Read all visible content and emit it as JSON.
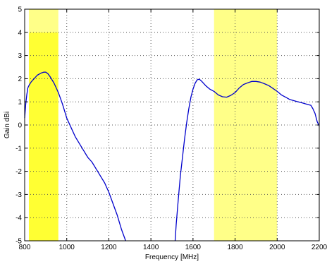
{
  "chart_data": {
    "type": "line",
    "title": "",
    "xlabel": "Frequency [MHz]",
    "ylabel": "Gain dBi",
    "xlim": [
      800,
      2200
    ],
    "ylim": [
      -5,
      5
    ],
    "xticks": [
      800,
      1000,
      1200,
      1400,
      1600,
      1800,
      2000,
      2200
    ],
    "yticks": [
      -5,
      -4,
      -3,
      -2,
      -1,
      0,
      1,
      2,
      3,
      4,
      5
    ],
    "grid": true,
    "bands": [
      {
        "x": [
          820,
          960
        ],
        "y": [
          -5,
          4
        ],
        "color": "#ffff33"
      },
      {
        "x": [
          820,
          960
        ],
        "y": [
          4,
          5
        ],
        "color": "#ffff88"
      },
      {
        "x": [
          1700,
          2000
        ],
        "y": [
          -5,
          5
        ],
        "color": "#ffff88"
      }
    ],
    "series": [
      {
        "color": "#0000cc",
        "segments": [
          {
            "x": [
              800,
              805,
              810,
              815,
              820,
              830,
              840,
              850,
              860,
              870,
              880,
              890,
              900,
              910,
              920,
              930,
              940,
              950,
              960,
              970,
              980,
              990,
              1000,
              1020,
              1040,
              1060,
              1080,
              1100,
              1120,
              1140,
              1160,
              1180,
              1200,
              1220,
              1240,
              1260,
              1280
            ],
            "y": [
              0.3,
              0.9,
              1.3,
              1.6,
              1.7,
              1.85,
              1.95,
              2.05,
              2.15,
              2.2,
              2.25,
              2.28,
              2.28,
              2.22,
              2.1,
              1.95,
              1.8,
              1.6,
              1.4,
              1.15,
              0.9,
              0.6,
              0.3,
              -0.1,
              -0.5,
              -0.8,
              -1.1,
              -1.4,
              -1.6,
              -1.9,
              -2.2,
              -2.5,
              -2.9,
              -3.4,
              -3.9,
              -4.5,
              -5.0
            ]
          },
          {
            "x": [
              1515,
              1520,
              1530,
              1540,
              1550,
              1560,
              1570,
              1580,
              1590,
              1600,
              1610,
              1620,
              1630,
              1640,
              1660,
              1680,
              1700,
              1720,
              1740,
              1760,
              1780,
              1800,
              1820,
              1840,
              1860,
              1880,
              1900,
              1920,
              1940,
              1960,
              1980,
              2000,
              2020,
              2040,
              2060,
              2080,
              2100,
              2120,
              2140,
              2160,
              2170,
              2180,
              2190,
              2200
            ],
            "y": [
              -5.0,
              -4.3,
              -3.2,
              -2.2,
              -1.4,
              -0.6,
              0.1,
              0.7,
              1.2,
              1.55,
              1.8,
              1.95,
              1.98,
              1.9,
              1.7,
              1.55,
              1.45,
              1.3,
              1.22,
              1.2,
              1.28,
              1.4,
              1.6,
              1.75,
              1.82,
              1.88,
              1.88,
              1.85,
              1.78,
              1.7,
              1.58,
              1.45,
              1.3,
              1.2,
              1.1,
              1.05,
              1.0,
              0.95,
              0.9,
              0.85,
              0.7,
              0.5,
              0.15,
              -0.05
            ]
          }
        ]
      }
    ]
  }
}
